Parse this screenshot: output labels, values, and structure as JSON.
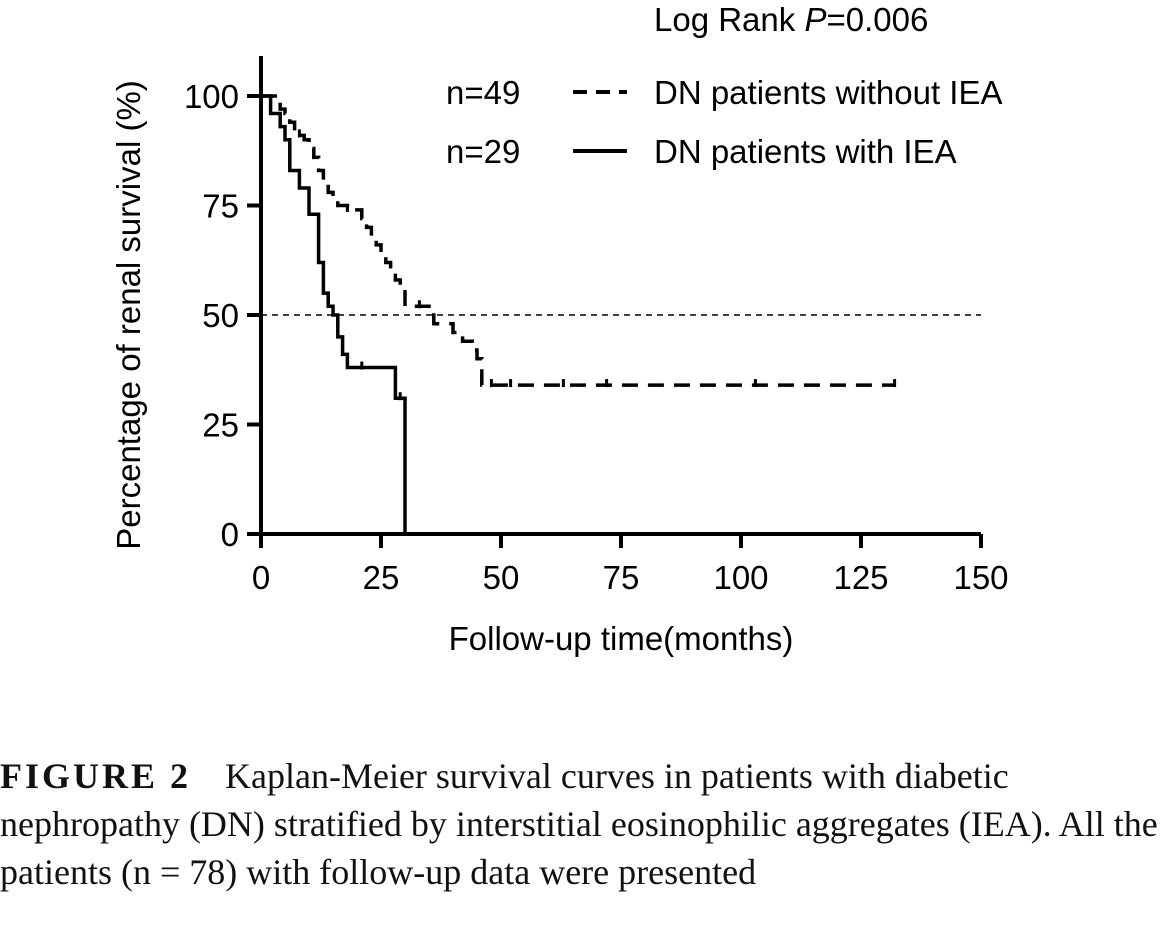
{
  "chart_data": {
    "type": "line",
    "step": true,
    "xlabel": "Follow-up time(months)",
    "ylabel": "Percentage of renal survival (%)",
    "xlim": [
      0,
      150
    ],
    "ylim": [
      0,
      100
    ],
    "xticks": [
      0,
      25,
      50,
      75,
      100,
      125,
      150
    ],
    "yticks": [
      0,
      25,
      50,
      75,
      100
    ],
    "grid": false,
    "legend_position": "top-right",
    "annotation": {
      "prefix": "Log Rank ",
      "italic": "P",
      "suffix": "=0.006"
    },
    "reference_line": {
      "y": 50,
      "style": "dashed"
    },
    "series": [
      {
        "name": "DN patients without IEA",
        "n_label": "n=49",
        "style": "dashed",
        "x": [
          0,
          1,
          3,
          4,
          5,
          6,
          7,
          8,
          9,
          10,
          11,
          12,
          13,
          14,
          15,
          16,
          17,
          18,
          19,
          20,
          21,
          22,
          23,
          24,
          25,
          26,
          27,
          28,
          29,
          30,
          32,
          34,
          35,
          36,
          37,
          38,
          40,
          42,
          43,
          44,
          45,
          46
        ],
        "y": [
          100,
          100,
          100,
          97,
          96,
          94,
          92,
          91,
          90,
          88,
          86,
          83,
          80,
          78,
          76,
          75,
          75,
          74,
          74,
          74,
          72,
          70,
          68,
          66,
          64,
          62,
          60,
          58,
          56,
          52,
          52,
          52,
          50,
          48,
          48,
          48,
          46,
          44,
          44,
          42,
          40,
          34
        ],
        "end": 132,
        "censored": [
          [
            8,
            91
          ],
          [
            18,
            74
          ],
          [
            33,
            52
          ],
          [
            48,
            34
          ],
          [
            52,
            34
          ],
          [
            63,
            34
          ],
          [
            72,
            34
          ],
          [
            103,
            34
          ],
          [
            132,
            34
          ]
        ]
      },
      {
        "name": "DN patients with IEA",
        "n_label": "n=29",
        "style": "solid",
        "x": [
          0,
          2,
          4,
          5,
          6,
          8,
          10,
          12,
          13,
          14,
          15,
          16,
          17,
          18,
          28,
          29,
          30
        ],
        "y": [
          100,
          96,
          93,
          90,
          83,
          79,
          73,
          62,
          55,
          52,
          50,
          45,
          41,
          38,
          31,
          31,
          0
        ],
        "end": 30,
        "censored": [
          [
            21,
            38
          ],
          [
            29,
            31
          ]
        ]
      }
    ]
  },
  "caption": {
    "label": "FIGURE 2",
    "text": "Kaplan-Meier survival curves in patients with diabetic nephropathy (DN) stratified by interstitial eosinophilic aggregates (IEA). All the patients (n = 78) with follow-up data were presented"
  }
}
